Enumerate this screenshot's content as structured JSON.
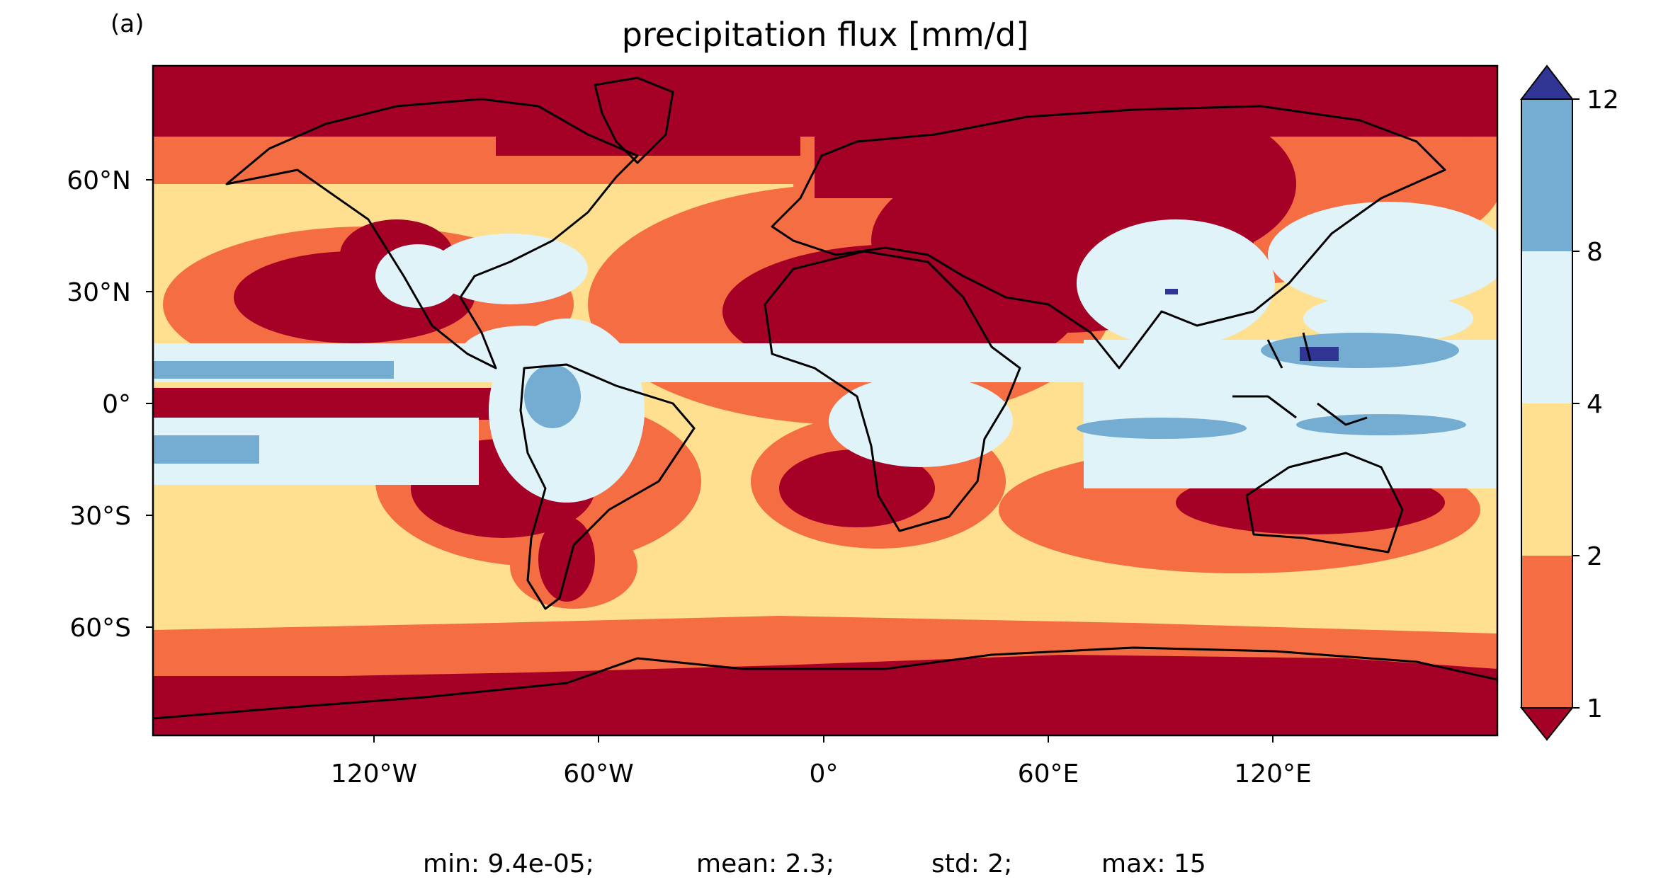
{
  "panel_label": "(a)",
  "title": "precipitation flux [mm/d]",
  "x_ticks": [
    "120°W",
    "60°W",
    "0°",
    "60°E",
    "120°E"
  ],
  "y_ticks": [
    "60°N",
    "30°N",
    "0°",
    "30°S",
    "60°S"
  ],
  "colorbar": {
    "tick_labels": [
      "1",
      "2",
      "4",
      "8",
      "12"
    ],
    "bins": [
      {
        "range": "<1",
        "color": "#a50026"
      },
      {
        "range": "1-2",
        "color": "#f46d43"
      },
      {
        "range": "2-4",
        "color": "#fee090"
      },
      {
        "range": "4-8",
        "color": "#e0f3f8"
      },
      {
        "range": "8-12",
        "color": "#74add1"
      },
      {
        "range": ">12",
        "color": "#313695"
      }
    ]
  },
  "stats": {
    "min": "min: 9.4e-05;",
    "mean": "mean: 2.3;",
    "std": "std: 2;",
    "max": "max: 15"
  }
}
